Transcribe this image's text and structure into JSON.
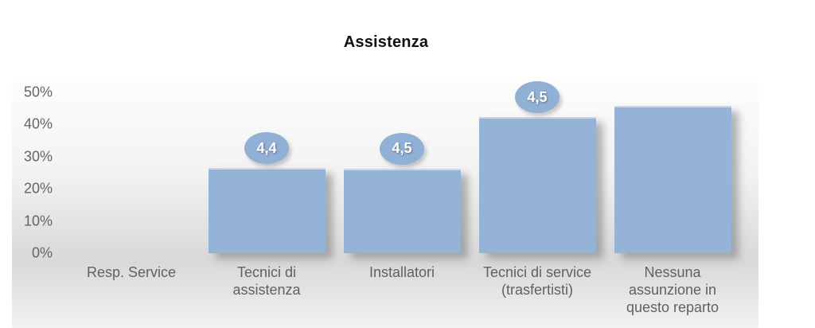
{
  "chart_data": {
    "type": "bar",
    "title": "Assistenza",
    "xlabel": "",
    "ylabel": "",
    "ylim": [
      0,
      50
    ],
    "y_unit": "%",
    "grid": false,
    "legend": null,
    "y_ticks": [
      "0%",
      "10%",
      "20%",
      "30%",
      "40%",
      "50%"
    ],
    "categories": [
      "Resp. Service",
      "Tecnici di assistenza",
      "Installatori",
      "Tecnici di service (trasfertisti)",
      "Nessuna assunzione in questo reparto"
    ],
    "category_lines": [
      [
        "Resp. Service"
      ],
      [
        "Tecnici di",
        "assistenza"
      ],
      [
        "Installatori"
      ],
      [
        "Tecnici di service",
        "(trasfertisti)"
      ],
      [
        "Nessuna",
        "assunzione in",
        "questo reparto"
      ]
    ],
    "values_percent": [
      0,
      26.3,
      26.2,
      42.1,
      45.6
    ],
    "point_labels": [
      "",
      "4,4",
      "4,5",
      "4,5",
      ""
    ]
  },
  "colors": {
    "bar_fill": "#95b3d7",
    "bar_top_edge": "#c8d7ec",
    "oval_fill": "#90b0d5",
    "oval_text": "#ffffff",
    "axis_text": "#646464",
    "category_text": "#616161",
    "title_text": "#111111",
    "plot_gradient_top": "#fdfdfd",
    "plot_gradient_dark": "#d9d9d9",
    "plot_gradient_bottom": "#f2f2f2",
    "shadow": "rgba(110,110,110,0.5)"
  }
}
